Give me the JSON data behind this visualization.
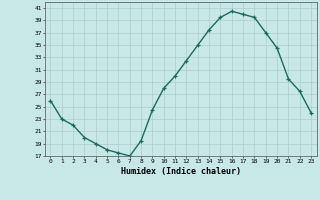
{
  "x": [
    0,
    1,
    2,
    3,
    4,
    5,
    6,
    7,
    8,
    9,
    10,
    11,
    12,
    13,
    14,
    15,
    16,
    17,
    18,
    19,
    20,
    21,
    22,
    23
  ],
  "y": [
    26,
    23,
    22,
    20,
    19,
    18,
    17.5,
    17,
    19.5,
    24.5,
    28,
    30,
    32.5,
    35,
    37.5,
    39.5,
    40.5,
    40,
    39.5,
    37,
    34.5,
    29.5,
    27.5,
    24
  ],
  "xlabel": "Humidex (Indice chaleur)",
  "ylim": [
    17,
    42
  ],
  "xlim": [
    -0.5,
    23.5
  ],
  "yticks": [
    17,
    19,
    21,
    23,
    25,
    27,
    29,
    31,
    33,
    35,
    37,
    39,
    41
  ],
  "xticks": [
    0,
    1,
    2,
    3,
    4,
    5,
    6,
    7,
    8,
    9,
    10,
    11,
    12,
    13,
    14,
    15,
    16,
    17,
    18,
    19,
    20,
    21,
    22,
    23
  ],
  "line_color": "#1a6b5e",
  "marker_color": "#1a6b5e",
  "bg_color": "#c8e8e8",
  "grid_color": "#b0cccc"
}
